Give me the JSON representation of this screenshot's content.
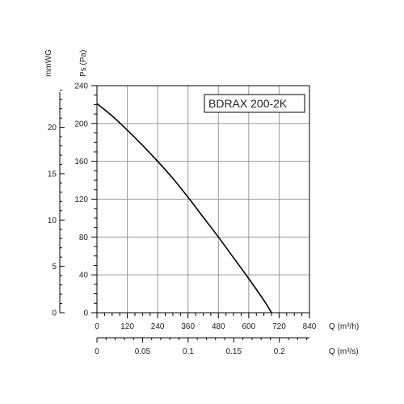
{
  "chart_data": {
    "type": "line",
    "title": "BDRAX  200-2K",
    "primary_y": {
      "label": "Ps (Pa)",
      "range": [
        0,
        240
      ],
      "ticks": [
        0,
        40,
        80,
        120,
        160,
        200,
        240
      ]
    },
    "secondary_y": {
      "label": "mmWG",
      "range": [
        0,
        24.5
      ],
      "ticks": [
        0,
        5,
        10,
        15,
        20
      ]
    },
    "primary_x": {
      "label": "Q (m³/h)",
      "range": [
        0,
        840
      ],
      "ticks": [
        0,
        120,
        240,
        360,
        480,
        600,
        720,
        840
      ]
    },
    "secondary_x": {
      "label": "Q (m³/s)",
      "range": [
        0,
        0.233
      ],
      "ticks": [
        0,
        0.05,
        0.1,
        0.15,
        0.2
      ],
      "tick_labels": [
        "0",
        "0.05",
        "0.1",
        "0.15",
        "0.2"
      ]
    },
    "grid": true,
    "series": [
      {
        "x": [
          0,
          60,
          120,
          180,
          240,
          300,
          360,
          420,
          480,
          540,
          600,
          660,
          690
        ],
        "values": [
          221,
          208,
          193,
          177,
          160,
          142,
          122,
          101,
          80,
          58,
          36,
          13,
          0
        ]
      }
    ]
  },
  "colors": {
    "grid": "#999999",
    "axis": "#000000",
    "curve": "#000000"
  }
}
